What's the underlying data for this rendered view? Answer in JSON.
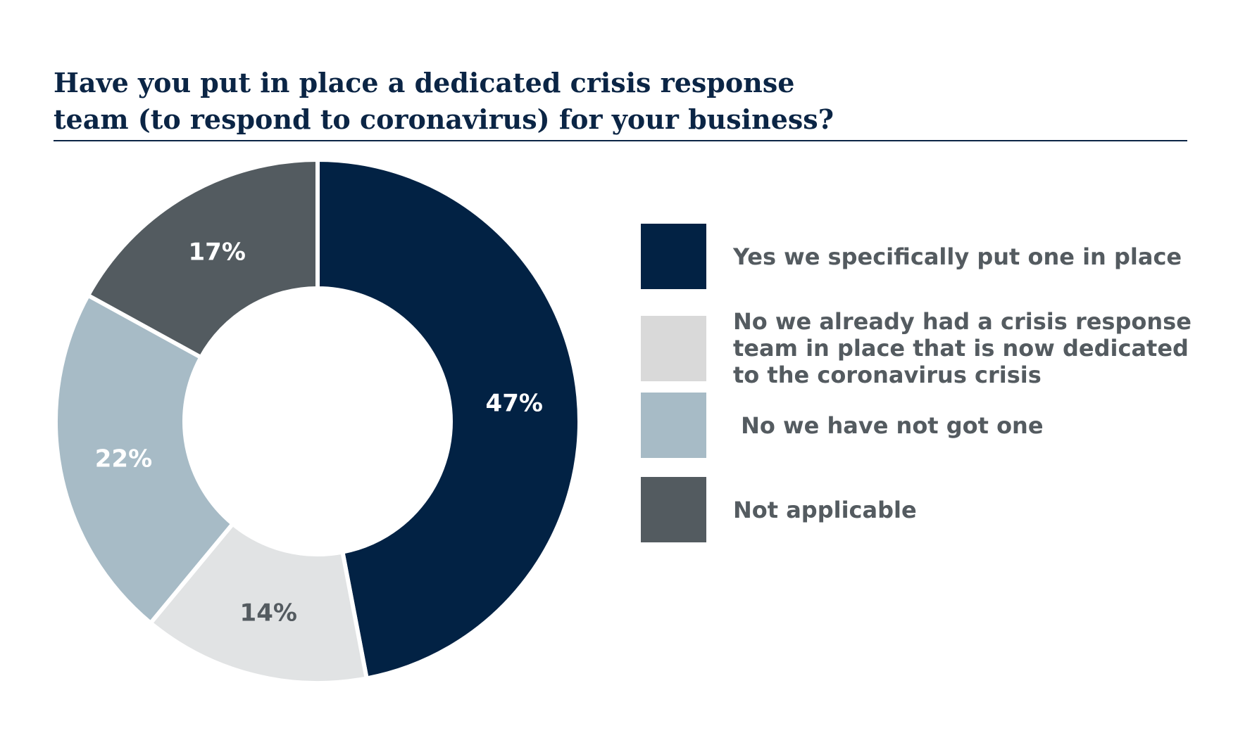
{
  "title_lines": [
    "Have you put in place a dedicated crisis response",
    "team (to respond to coronavirus) for your business?"
  ],
  "chart_data": {
    "type": "pie",
    "variant": "donut",
    "title": "Have you put in place a dedicated crisis response team (to respond to coronavirus) for your business?",
    "legend_position": "right",
    "slices": [
      {
        "label": "Yes we specifically put one in place",
        "value": 47,
        "display": "47%",
        "color": "#022244",
        "label_color": "#ffffff"
      },
      {
        "label": "No we already had a crisis response team in place that is now dedicated to the coronavirus crisis",
        "value": 14,
        "display": "14%",
        "color": "#e1e3e4",
        "label_color": "#545b60"
      },
      {
        "label": " No we have not got one",
        "value": 22,
        "display": "22%",
        "color": "#a7bbc6",
        "label_color": "#ffffff"
      },
      {
        "label": "Not applicable",
        "value": 17,
        "display": "17%",
        "color": "#535b60",
        "label_color": "#ffffff"
      }
    ]
  },
  "legend": [
    {
      "label": "Yes we specifically put one in place",
      "color": "#022244"
    },
    {
      "label": "No we already had a crisis response team in place that is now dedicated to the coronavirus crisis",
      "color": "#d9d9d9"
    },
    {
      "label": " No we have not got one",
      "color": "#a7bbc6"
    },
    {
      "label": "Not applicable",
      "color": "#535b60"
    }
  ]
}
